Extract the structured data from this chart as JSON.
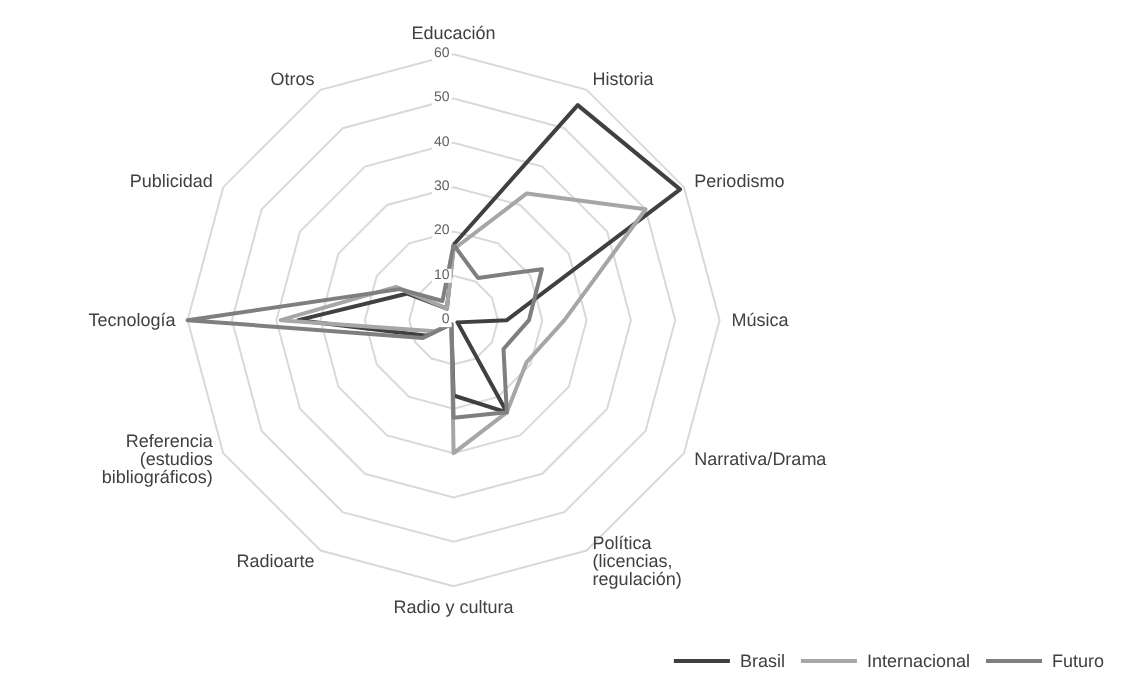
{
  "chart_data": {
    "type": "radar",
    "categories": [
      "Educación",
      "Historia",
      "Periodismo",
      "Música",
      "Narrativa/Drama",
      "Política (licencias, regulación)",
      "Radio y cultura",
      "Radioarte",
      "Referencia (estudios bibliográficos)",
      "Tecnología",
      "Publicidad",
      "Otros"
    ],
    "ylim": [
      0,
      60
    ],
    "yticks": [
      0,
      10,
      20,
      30,
      40,
      50,
      60
    ],
    "grid": true,
    "legend": "bottom right",
    "marker": "none",
    "line_style": "solid",
    "series": [
      {
        "name": "Brasil",
        "color": "#404040",
        "values": [
          17,
          56,
          59,
          12,
          1,
          24,
          17,
          1,
          7,
          35,
          12,
          3
        ]
      },
      {
        "name": "Internacional",
        "color": "#a6a6a6",
        "values": [
          16,
          33,
          50,
          25,
          19,
          24,
          30,
          1,
          5,
          39,
          15,
          3
        ]
      },
      {
        "name": "Futuro",
        "color": "#7f7f7f",
        "values": [
          17,
          11,
          23,
          17,
          13,
          24,
          22,
          1,
          8,
          60,
          14,
          5
        ]
      }
    ]
  }
}
